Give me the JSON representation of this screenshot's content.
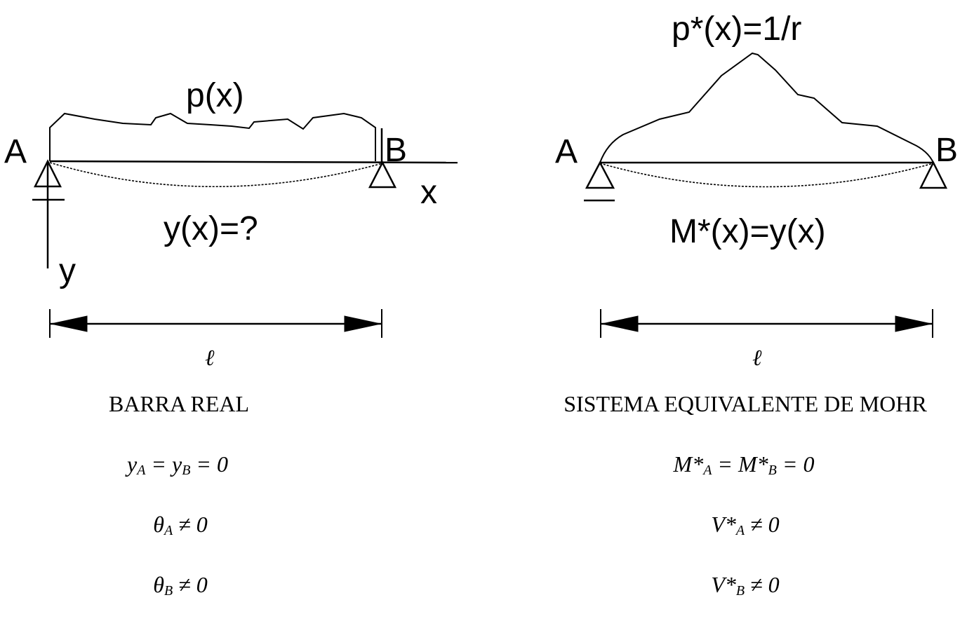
{
  "left": {
    "label_a": "A",
    "label_b": "B",
    "load_label": "p(x)",
    "deflection_label": "y(x)=?",
    "axis_x": "x",
    "axis_y": "y",
    "span_label": "ℓ",
    "caption": "BARRA REAL",
    "cond1": {
      "main": "y",
      "sub": "A",
      "mid": " = y",
      "sub2": "B",
      "end": " = 0"
    },
    "cond2": {
      "main": "θ",
      "sub": "A",
      "end": " ≠ 0"
    },
    "cond3": {
      "main": "θ",
      "sub": "B",
      "end": " ≠ 0"
    }
  },
  "right": {
    "label_a": "A",
    "label_b": "B",
    "load_label": "p*(x)=1/r",
    "moment_label": "M*(x)=y(x)",
    "span_label": "ℓ",
    "caption": "SISTEMA EQUIVALENTE DE MOHR",
    "cond1": {
      "main": "M*",
      "sub": "A",
      "mid": " = M*",
      "sub2": "B",
      "end": " = 0"
    },
    "cond2": {
      "main": "V*",
      "sub": "A",
      "end": " ≠ 0"
    },
    "cond3": {
      "main": "V*",
      "sub": "B",
      "end": " ≠ 0"
    }
  }
}
